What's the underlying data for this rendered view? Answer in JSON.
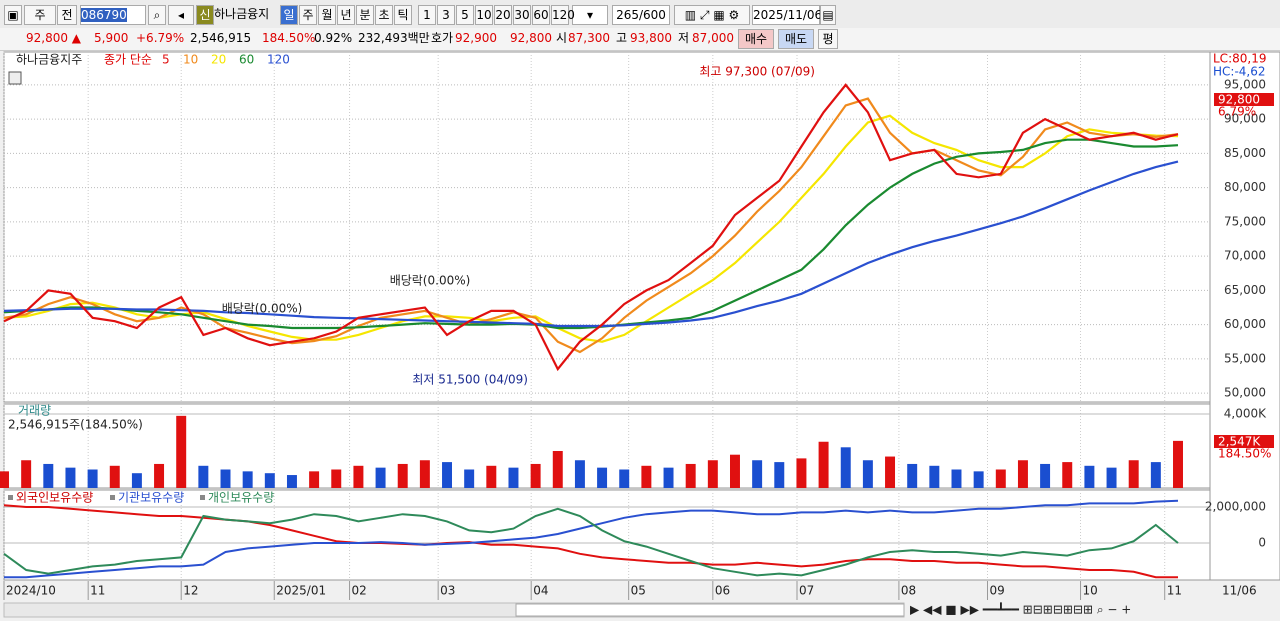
{
  "toolbar": {
    "period": "주",
    "prev": "전",
    "code": "086790",
    "sin": "신",
    "name": "하나금융지",
    "tabs": [
      "일",
      "주",
      "월",
      "년",
      "분",
      "초",
      "틱"
    ],
    "intervals": [
      "1",
      "3",
      "5",
      "10",
      "20",
      "30",
      "60",
      "120"
    ],
    "count": "265/600",
    "date": "2025/11/06"
  },
  "quote": {
    "price": "92,800 ▲",
    "change": "5,900",
    "rate": "+6.79%",
    "volume": "2,546,915",
    "vol_rate": "184.50%",
    "turnover": "0.92%",
    "amount": "232,493백만",
    "bid_label": "호가",
    "ask": "92,900",
    "bid": "92,800",
    "open_label": "시",
    "open": "87,300",
    "high_label": "고",
    "high": "93,800",
    "low_label": "저",
    "low": "87,000",
    "buy": "매수",
    "sell": "매도",
    "avg": "평"
  },
  "chart_data": [
    {
      "type": "line",
      "legend_title": "하나금융지주",
      "legend_prefix": "종가 단순",
      "lc": "LC:80,19",
      "hc": "HC:-4,62",
      "current_label": "92,800",
      "current_rate": "6.79%",
      "annotations": [
        "최고 97,300 (07/09)",
        "최저 51,500 (04/09)",
        "배당락(0.00%)",
        "배당락(0.00%)"
      ],
      "x": [
        0,
        5,
        10,
        15,
        20,
        25,
        30,
        35,
        40,
        45,
        50,
        55,
        60,
        65,
        70,
        75,
        80,
        85,
        90,
        95,
        100,
        105,
        110,
        115,
        120,
        125,
        130,
        135,
        140,
        145,
        150,
        155,
        160,
        165,
        170,
        175,
        180,
        185,
        190,
        195,
        200,
        205,
        210,
        215,
        220,
        225,
        230,
        235,
        240,
        245,
        250,
        255,
        260,
        265
      ],
      "xlim": [
        0,
        265
      ],
      "xticks": [
        {
          "value": 0,
          "label": "2024/10"
        },
        {
          "value": 19,
          "label": "11"
        },
        {
          "value": 40,
          "label": "12"
        },
        {
          "value": 61,
          "label": "2025/01"
        },
        {
          "value": 78,
          "label": "02"
        },
        {
          "value": 98,
          "label": "03"
        },
        {
          "value": 119,
          "label": "04"
        },
        {
          "value": 141,
          "label": "05"
        },
        {
          "value": 160,
          "label": "06"
        },
        {
          "value": 179,
          "label": "07"
        },
        {
          "value": 202,
          "label": "08"
        },
        {
          "value": 222,
          "label": "09"
        },
        {
          "value": 243,
          "label": "10"
        },
        {
          "value": 262,
          "label": "11"
        }
      ],
      "ylim": [
        48700,
        99800
      ],
      "yticks": [
        {
          "value": 50000,
          "label": "50,000"
        },
        {
          "value": 55000,
          "label": "55,000"
        },
        {
          "value": 60000,
          "label": "60,000"
        },
        {
          "value": 65000,
          "label": "65,000"
        },
        {
          "value": 70000,
          "label": "70,000"
        },
        {
          "value": 75000,
          "label": "75,000"
        },
        {
          "value": 80000,
          "label": "80,000"
        },
        {
          "value": 85000,
          "label": "85,000"
        },
        {
          "value": 90000,
          "label": "90,000"
        },
        {
          "value": 95000,
          "label": "95,000"
        }
      ],
      "grid": true,
      "series": [
        {
          "name": "5",
          "color": "#e01010",
          "values": [
            60500,
            62000,
            65000,
            64500,
            61000,
            60500,
            59500,
            62500,
            64000,
            58500,
            59500,
            58000,
            57000,
            57500,
            58000,
            59000,
            61000,
            61500,
            62000,
            62500,
            58500,
            60500,
            62000,
            62000,
            60000,
            53500,
            57500,
            60000,
            63000,
            65000,
            66500,
            69000,
            71500,
            76000,
            78500,
            81000,
            86000,
            91000,
            95000,
            91000,
            84000,
            85000,
            85500,
            82000,
            81500,
            82000,
            88000,
            90000,
            88500,
            87000,
            87500,
            88000,
            87000,
            87800
          ]
        },
        {
          "name": "10",
          "color": "#f08a1c",
          "values": [
            61000,
            61500,
            63000,
            64000,
            63000,
            61500,
            60500,
            61000,
            62500,
            61500,
            59500,
            58800,
            58000,
            57300,
            57600,
            58300,
            59800,
            61000,
            61500,
            62000,
            61000,
            60000,
            60800,
            61800,
            61000,
            57500,
            56000,
            58000,
            61000,
            63500,
            65500,
            67500,
            70000,
            73000,
            76500,
            79500,
            83000,
            87500,
            92000,
            93000,
            88000,
            85000,
            85500,
            84000,
            82500,
            81800,
            84500,
            88500,
            89500,
            88000,
            87500,
            87800,
            87400,
            87800
          ]
        },
        {
          "name": "20",
          "color": "#f5e600",
          "values": [
            61000,
            61200,
            62000,
            63000,
            63200,
            62500,
            61500,
            61000,
            61500,
            61800,
            60800,
            59800,
            59000,
            58200,
            57800,
            57800,
            58500,
            59500,
            60500,
            61200,
            61200,
            61000,
            60500,
            61000,
            61200,
            59500,
            58000,
            57500,
            58500,
            60500,
            62500,
            64500,
            66500,
            69000,
            72000,
            75000,
            78500,
            82000,
            86000,
            89500,
            90500,
            88000,
            86500,
            85500,
            84000,
            83000,
            83000,
            85000,
            87500,
            88500,
            88000,
            87800,
            87600,
            87500
          ]
        },
        {
          "name": "60",
          "color": "#1a8a30",
          "values": [
            61800,
            62000,
            62200,
            62500,
            62500,
            62300,
            62000,
            61800,
            61500,
            61000,
            60500,
            60000,
            59800,
            59500,
            59500,
            59500,
            59600,
            59800,
            60000,
            60200,
            60100,
            60000,
            60000,
            60100,
            60000,
            59500,
            59500,
            59700,
            60000,
            60300,
            60600,
            61000,
            62000,
            63500,
            65000,
            66500,
            68000,
            71000,
            74500,
            77500,
            80000,
            82000,
            83500,
            84500,
            85000,
            85200,
            85500,
            86500,
            87000,
            87000,
            86500,
            86000,
            86000,
            86200
          ]
        },
        {
          "name": "120",
          "color": "#2a50d0",
          "values": [
            62000,
            62100,
            62200,
            62300,
            62300,
            62300,
            62200,
            62200,
            62100,
            62000,
            61800,
            61700,
            61500,
            61300,
            61100,
            61000,
            60900,
            60800,
            60700,
            60600,
            60500,
            60400,
            60300,
            60200,
            60100,
            59800,
            59800,
            59800,
            59900,
            60100,
            60300,
            60600,
            61000,
            61800,
            62700,
            63500,
            64500,
            66000,
            67500,
            69000,
            70200,
            71300,
            72200,
            73000,
            73900,
            74800,
            75800,
            77000,
            78300,
            79600,
            80800,
            82000,
            83000,
            83800
          ]
        }
      ]
    },
    {
      "type": "bar",
      "title": "거래량",
      "subtitle": "2,546,915주(184.50%)",
      "current_label": "2,547K",
      "current_rate": "184.50%",
      "ylim": [
        0,
        4540
      ],
      "yticks": [
        {
          "value": 4000,
          "label": "4,000K"
        }
      ],
      "colors": {
        "up": "#e01010",
        "down": "#1a4ed0"
      },
      "values": [
        900,
        1500,
        1300,
        1100,
        1000,
        1200,
        800,
        1300,
        3900,
        1200,
        1000,
        900,
        800,
        700,
        900,
        1000,
        1200,
        1100,
        1300,
        1500,
        1400,
        1000,
        1200,
        1100,
        1300,
        2000,
        1500,
        1100,
        1000,
        1200,
        1100,
        1300,
        1500,
        1800,
        1500,
        1400,
        1600,
        2500,
        2200,
        1500,
        1700,
        1300,
        1200,
        1000,
        900,
        1000,
        1500,
        1300,
        1400,
        1200,
        1100,
        1500,
        1400,
        2547
      ]
    },
    {
      "type": "line",
      "x_last_label": "11/06",
      "ylim": [
        -2055000,
        2944000
      ],
      "yticks": [
        {
          "value": 2000000,
          "label": "2,000,000"
        },
        0
      ],
      "series": [
        {
          "name": "외국인보유수량",
          "color": "#e01010",
          "values": [
            2100000,
            2000000,
            2000000,
            1900000,
            1800000,
            1700000,
            1600000,
            1500000,
            1500000,
            1400000,
            1300000,
            1200000,
            1000000,
            700000,
            400000,
            100000,
            0,
            0,
            -50000,
            -100000,
            0,
            50000,
            -100000,
            -100000,
            -200000,
            -300000,
            -600000,
            -800000,
            -900000,
            -1000000,
            -1100000,
            -1100000,
            -1200000,
            -1200000,
            -1100000,
            -1200000,
            -1300000,
            -1200000,
            -1000000,
            -900000,
            -900000,
            -1000000,
            -1000000,
            -1100000,
            -1100000,
            -1200000,
            -1300000,
            -1300000,
            -1400000,
            -1500000,
            -1500000,
            -1600000,
            -1900000,
            -1900000
          ]
        },
        {
          "name": "기관보유수량",
          "color": "#2a50d0",
          "values": [
            -1900000,
            -1900000,
            -1800000,
            -1700000,
            -1600000,
            -1500000,
            -1400000,
            -1300000,
            -1300000,
            -1200000,
            -500000,
            -300000,
            -200000,
            -100000,
            0,
            0,
            0,
            50000,
            0,
            -100000,
            -50000,
            0,
            100000,
            200000,
            300000,
            500000,
            800000,
            1100000,
            1400000,
            1600000,
            1700000,
            1800000,
            1800000,
            1700000,
            1600000,
            1600000,
            1700000,
            1700000,
            1800000,
            1700000,
            1800000,
            1700000,
            1700000,
            1800000,
            1900000,
            1900000,
            2000000,
            2100000,
            2100000,
            2200000,
            2200000,
            2200000,
            2300000,
            2350000
          ]
        },
        {
          "name": "개인보유수량",
          "color": "#2e8a5a",
          "values": [
            -600000,
            -1500000,
            -1700000,
            -1500000,
            -1300000,
            -1200000,
            -1000000,
            -900000,
            -800000,
            1500000,
            1300000,
            1200000,
            1100000,
            1300000,
            1600000,
            1500000,
            1200000,
            1400000,
            1600000,
            1500000,
            1200000,
            700000,
            600000,
            800000,
            1500000,
            1900000,
            1500000,
            700000,
            100000,
            -200000,
            -600000,
            -1000000,
            -1400000,
            -1600000,
            -1800000,
            -1700000,
            -1800000,
            -1500000,
            -1200000,
            -800000,
            -500000,
            -400000,
            -500000,
            -500000,
            -600000,
            -700000,
            -500000,
            -600000,
            -700000,
            -400000,
            -300000,
            100000,
            1000000,
            0
          ]
        }
      ]
    }
  ]
}
